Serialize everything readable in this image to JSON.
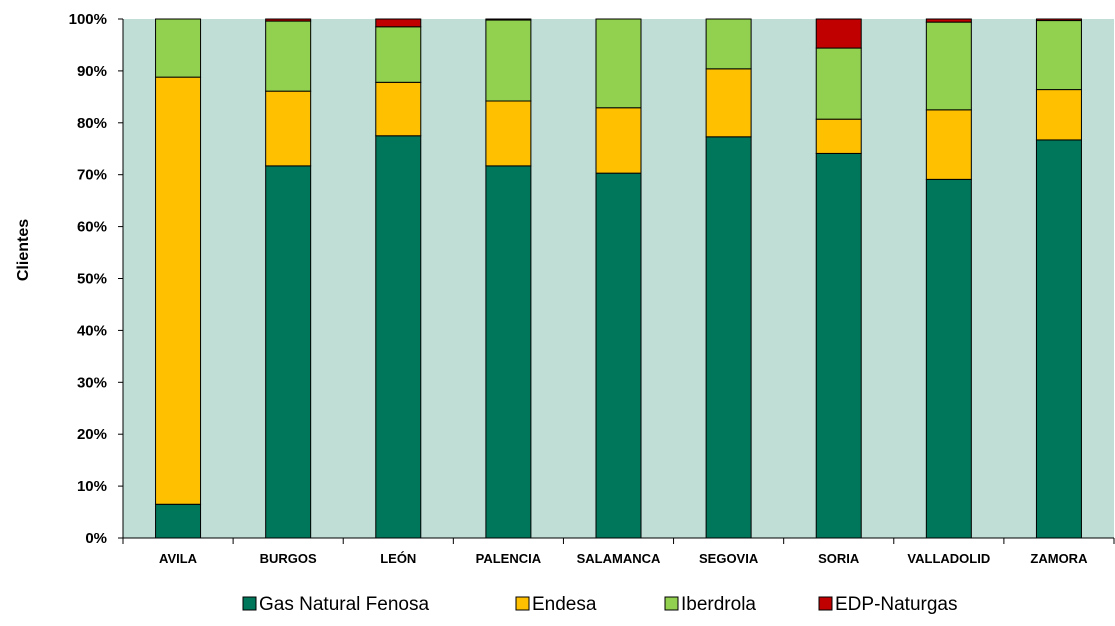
{
  "chart_data": {
    "type": "bar",
    "stacked": true,
    "percent_stacked": true,
    "title": "",
    "xlabel": "",
    "ylabel": "Clientes",
    "ylim": [
      0,
      100
    ],
    "y_ticks": [
      "0%",
      "10%",
      "20%",
      "30%",
      "40%",
      "50%",
      "60%",
      "70%",
      "80%",
      "90%",
      "100%"
    ],
    "grid": false,
    "legend_position": "bottom",
    "plot_background": "#c0ddd6",
    "categories": [
      "AVILA",
      "BURGOS",
      "LEÓN",
      "PALENCIA",
      "SALAMANCA",
      "SEGOVIA",
      "SORIA",
      "VALLADOLID",
      "ZAMORA"
    ],
    "series": [
      {
        "name": "Gas Natural Fenosa",
        "color": "#00765a",
        "values": [
          6.5,
          71.7,
          77.5,
          71.7,
          70.3,
          77.3,
          74.1,
          69.1,
          76.7
        ]
      },
      {
        "name": "Endesa",
        "color": "#ffc000",
        "values": [
          82.3,
          14.4,
          10.3,
          12.5,
          12.6,
          13.1,
          6.6,
          13.4,
          9.7
        ]
      },
      {
        "name": "Iberdrola",
        "color": "#92d050",
        "values": [
          11.2,
          13.5,
          10.7,
          15.6,
          17.1,
          9.6,
          13.7,
          16.9,
          13.3
        ]
      },
      {
        "name": "EDP-Naturgas",
        "color": "#c00000",
        "values": [
          0.0,
          0.4,
          1.5,
          0.2,
          0.0,
          0.0,
          5.6,
          0.6,
          0.3
        ]
      }
    ]
  }
}
